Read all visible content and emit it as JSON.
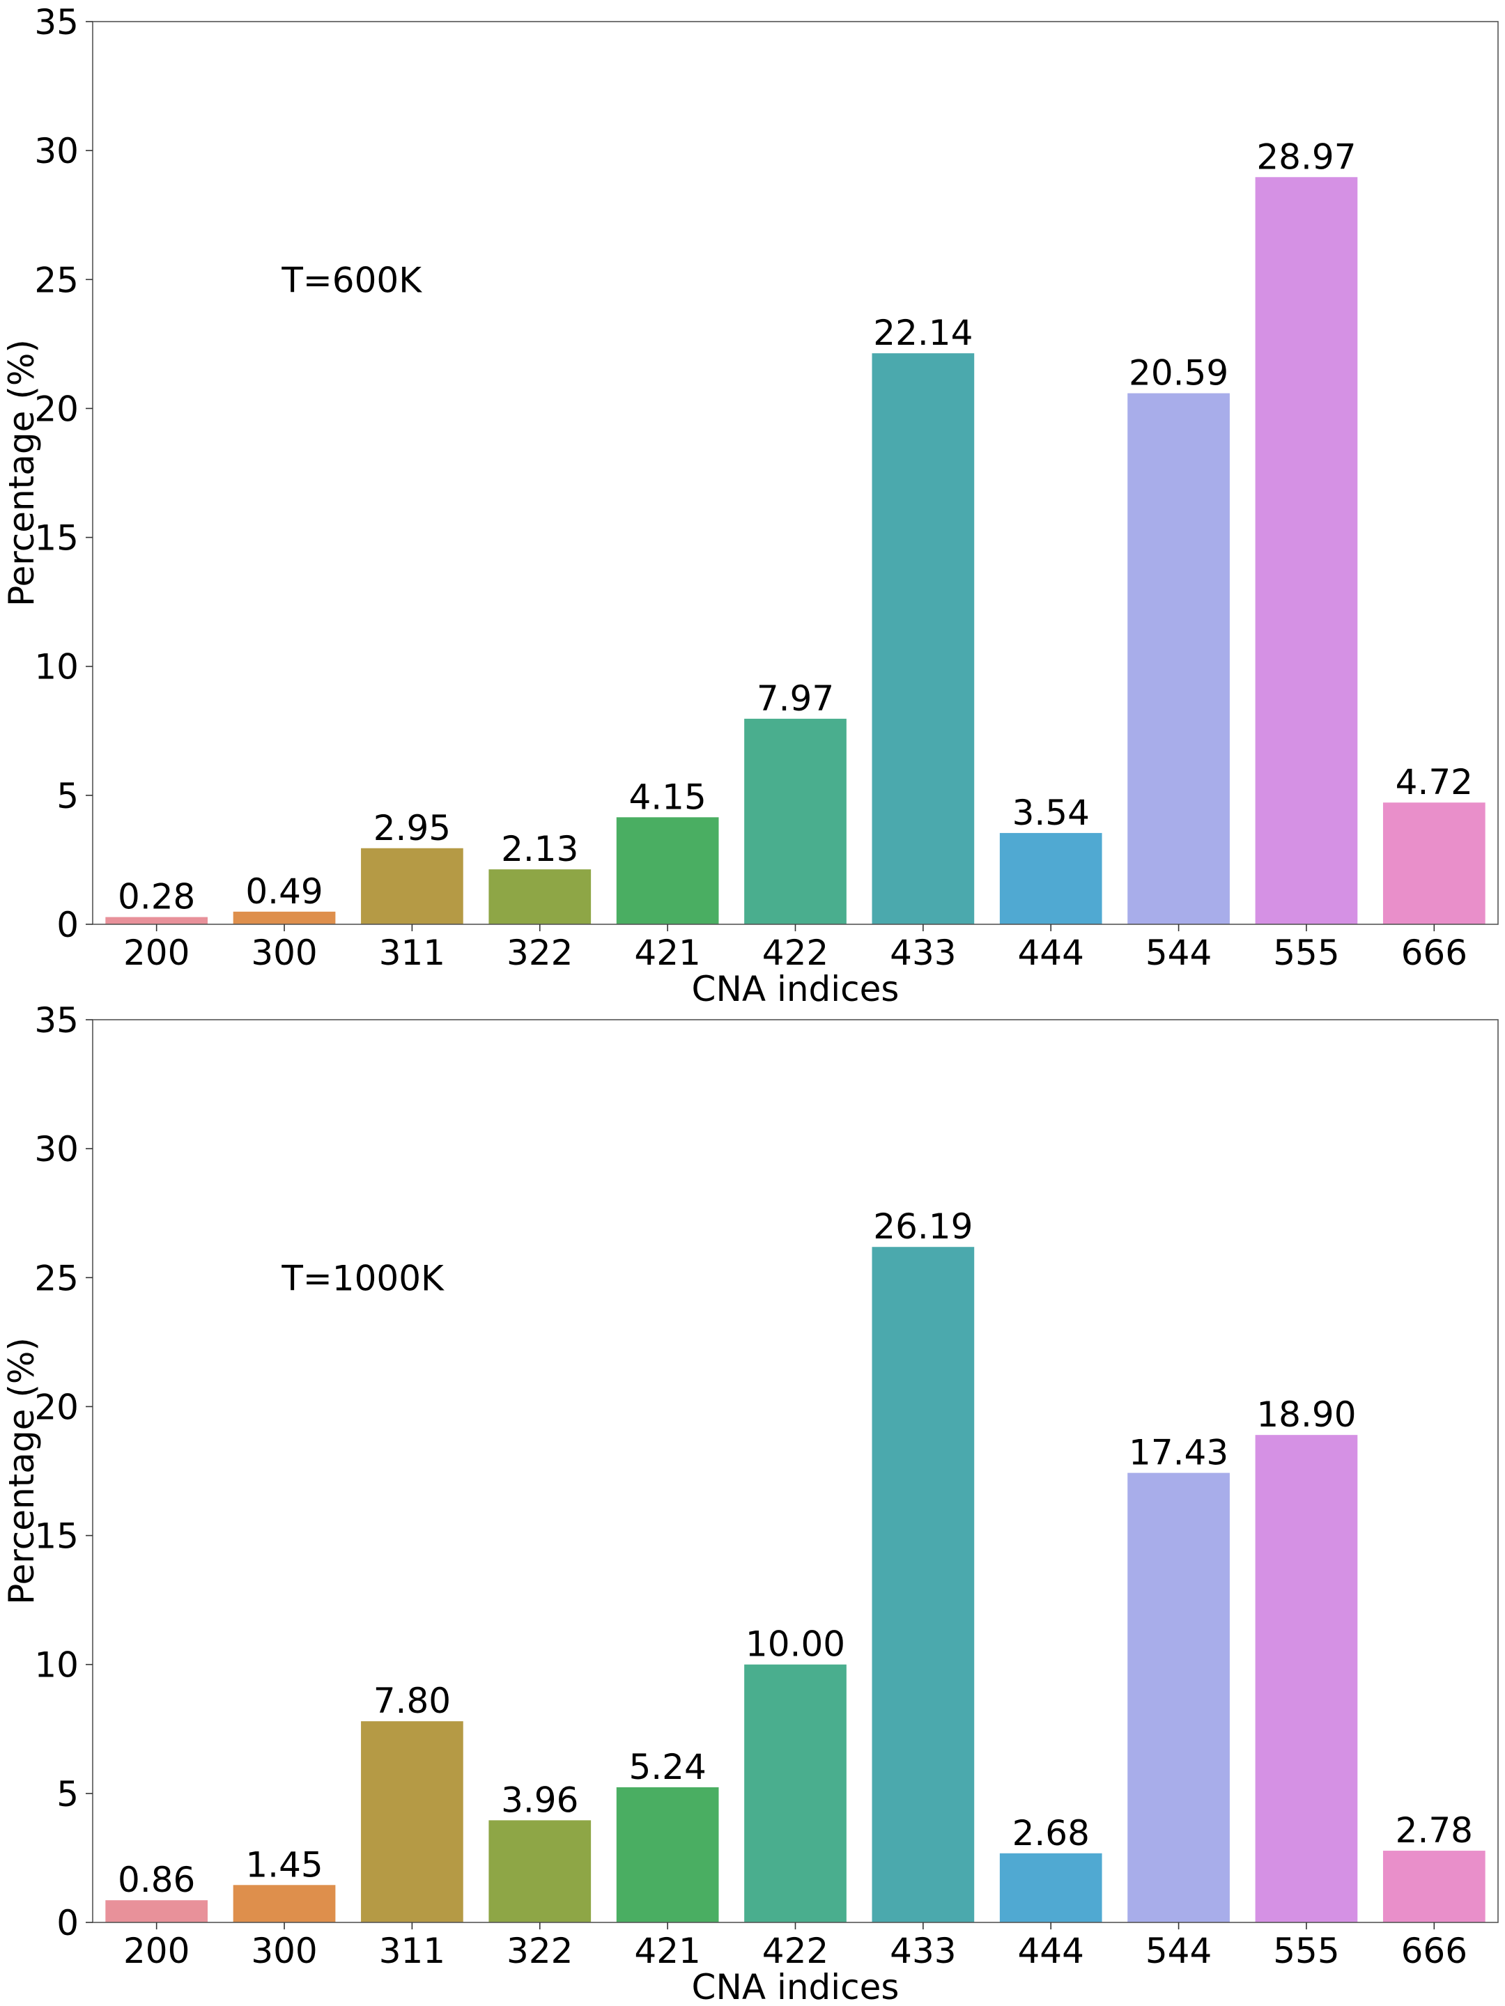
{
  "chart_data": [
    {
      "type": "bar",
      "annotation": "T=600K",
      "xlabel": "CNA indices",
      "ylabel": "Percentage (%)",
      "ylim": [
        0,
        35
      ],
      "yticks": [
        0,
        5,
        10,
        15,
        20,
        25,
        30,
        35
      ],
      "categories": [
        "200",
        "300",
        "311",
        "322",
        "421",
        "422",
        "433",
        "444",
        "544",
        "555",
        "666"
      ],
      "values": [
        0.28,
        0.49,
        2.95,
        2.13,
        4.15,
        7.97,
        22.14,
        3.54,
        20.59,
        28.97,
        4.72
      ],
      "value_labels": [
        "0.28",
        "0.49",
        "2.95",
        "2.13",
        "4.15",
        "7.97",
        "22.14",
        "3.54",
        "20.59",
        "28.97",
        "4.72"
      ],
      "grid": false
    },
    {
      "type": "bar",
      "annotation": "T=1000K",
      "xlabel": "CNA indices",
      "ylabel": "Percentage (%)",
      "ylim": [
        0,
        35
      ],
      "yticks": [
        0,
        5,
        10,
        15,
        20,
        25,
        30,
        35
      ],
      "categories": [
        "200",
        "300",
        "311",
        "322",
        "421",
        "422",
        "433",
        "444",
        "544",
        "555",
        "666"
      ],
      "values": [
        0.86,
        1.45,
        7.8,
        3.96,
        5.24,
        10.0,
        26.19,
        2.68,
        17.43,
        18.9,
        2.78
      ],
      "value_labels": [
        "0.86",
        "1.45",
        "7.80",
        "3.96",
        "5.24",
        "10.00",
        "26.19",
        "2.68",
        "17.43",
        "18.90",
        "2.78"
      ],
      "grid": false
    }
  ],
  "colors": [
    "#e8919a",
    "#de8f4c",
    "#b59a45",
    "#8ea646",
    "#4aae62",
    "#4aae8e",
    "#4ba9ad",
    "#50a9d2",
    "#a8adea",
    "#d591e4",
    "#e98fca"
  ]
}
